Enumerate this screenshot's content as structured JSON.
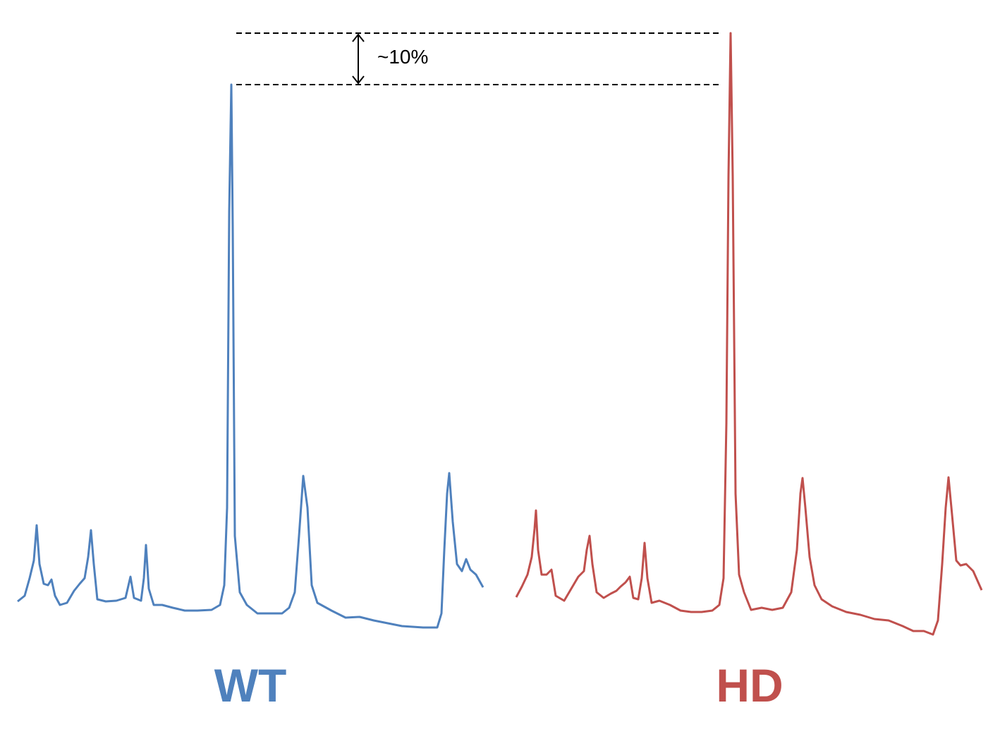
{
  "annotation": "~10%",
  "chart_data": [
    {
      "type": "line",
      "title": "WT",
      "color": "#4f81bd",
      "xlim": [
        0,
        660
      ],
      "ylim": [
        0,
        870
      ],
      "x": [
        0,
        10,
        17,
        23,
        27,
        31,
        37,
        43,
        48,
        53,
        60,
        70,
        80,
        88,
        95,
        100,
        104,
        108,
        113,
        125,
        140,
        153,
        160,
        165,
        175,
        179,
        182,
        186,
        193,
        205,
        220,
        237,
        255,
        275,
        287,
        293,
        297,
        300,
        303,
        305,
        308,
        315,
        325,
        340,
        355,
        375,
        385,
        393,
        399,
        405,
        411,
        417,
        425,
        445,
        465,
        485,
        505,
        525,
        545,
        575,
        595,
        601,
        605,
        609,
        612,
        617,
        623,
        630,
        636,
        642,
        650,
        660
      ],
      "values": [
        57,
        65,
        90,
        115,
        165,
        110,
        82,
        80,
        88,
        65,
        52,
        55,
        72,
        82,
        90,
        120,
        158,
        110,
        60,
        57,
        58,
        62,
        92,
        62,
        58,
        90,
        137,
        75,
        52,
        52,
        48,
        44,
        44,
        45,
        52,
        80,
        190,
        610,
        790,
        590,
        150,
        70,
        52,
        40,
        40,
        40,
        48,
        70,
        150,
        235,
        190,
        80,
        55,
        44,
        34,
        35,
        30,
        26,
        22,
        20,
        20,
        40,
        130,
        210,
        239,
        170,
        110,
        100,
        117,
        102,
        95,
        77
      ]
    },
    {
      "type": "line",
      "title": "HD",
      "color": "#c0504d",
      "xlim": [
        0,
        660
      ],
      "ylim": [
        0,
        870
      ],
      "x": [
        0,
        8,
        16,
        22,
        26,
        28,
        31,
        36,
        43,
        50,
        56,
        68,
        78,
        88,
        96,
        100,
        104,
        108,
        114,
        124,
        134,
        142,
        148,
        155,
        161,
        166,
        173,
        178,
        182,
        186,
        192,
        203,
        218,
        233,
        248,
        263,
        278,
        288,
        294,
        298,
        301,
        304,
        307,
        311,
        316,
        323,
        333,
        348,
        363,
        378,
        390,
        398,
        403,
        406,
        410,
        416,
        423,
        433,
        448,
        468,
        488,
        508,
        528,
        548,
        563,
        578,
        591,
        598,
        604,
        609,
        613,
        618,
        624,
        630,
        638,
        648,
        660
      ],
      "values": [
        63,
        78,
        95,
        120,
        160,
        186,
        130,
        95,
        95,
        102,
        65,
        58,
        75,
        92,
        100,
        130,
        150,
        110,
        70,
        62,
        68,
        72,
        78,
        84,
        92,
        62,
        60,
        90,
        140,
        90,
        55,
        58,
        52,
        44,
        42,
        42,
        44,
        52,
        90,
        310,
        660,
        863,
        660,
        210,
        95,
        70,
        45,
        48,
        45,
        48,
        70,
        130,
        210,
        232,
        190,
        120,
        80,
        60,
        50,
        42,
        38,
        32,
        30,
        22,
        15,
        15,
        10,
        30,
        110,
        190,
        233,
        180,
        115,
        108,
        110,
        100,
        73
      ]
    }
  ]
}
